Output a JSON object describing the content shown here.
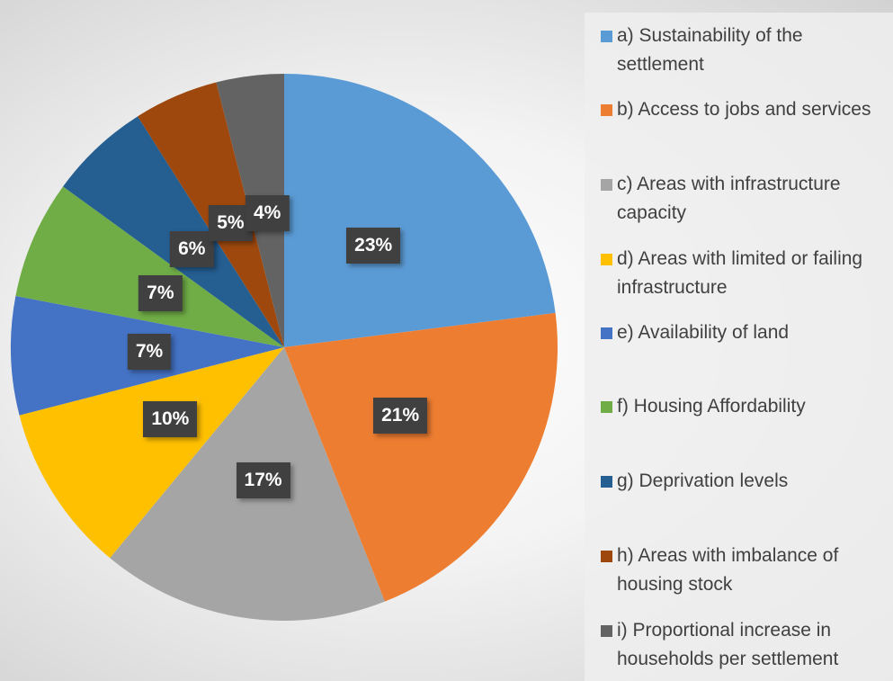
{
  "chart_data": {
    "type": "pie",
    "title": "",
    "start_angle": "top, clockwise",
    "legend_position": "right",
    "slices": [
      {
        "label": "a) Sustainability of the settlement",
        "value": 23,
        "data_label": "23%",
        "color": "#5B9BD5"
      },
      {
        "label": "b) Access to jobs and services",
        "value": 21,
        "data_label": "21%",
        "color": "#ED7D31"
      },
      {
        "label": "c) Areas with infrastructure capacity",
        "value": 17,
        "data_label": "17%",
        "color": "#A5A5A5"
      },
      {
        "label": "d) Areas with limited or failing infrastructure",
        "value": 10,
        "data_label": "10%",
        "color": "#FFC000"
      },
      {
        "label": "e) Availability of land",
        "value": 7,
        "data_label": "7%",
        "color": "#4472C4"
      },
      {
        "label": "f) Housing Affordability",
        "value": 7,
        "data_label": "7%",
        "color": "#70AD47"
      },
      {
        "label": "g) Deprivation levels",
        "value": 6,
        "data_label": "6%",
        "color": "#255E91"
      },
      {
        "label": "h) Areas with imbalance of housing stock",
        "value": 5,
        "data_label": "5%",
        "color": "#9E480E"
      },
      {
        "label": "i) Proportional increase in households per settlement",
        "value": 4,
        "data_label": "4%",
        "color": "#636363"
      }
    ]
  }
}
